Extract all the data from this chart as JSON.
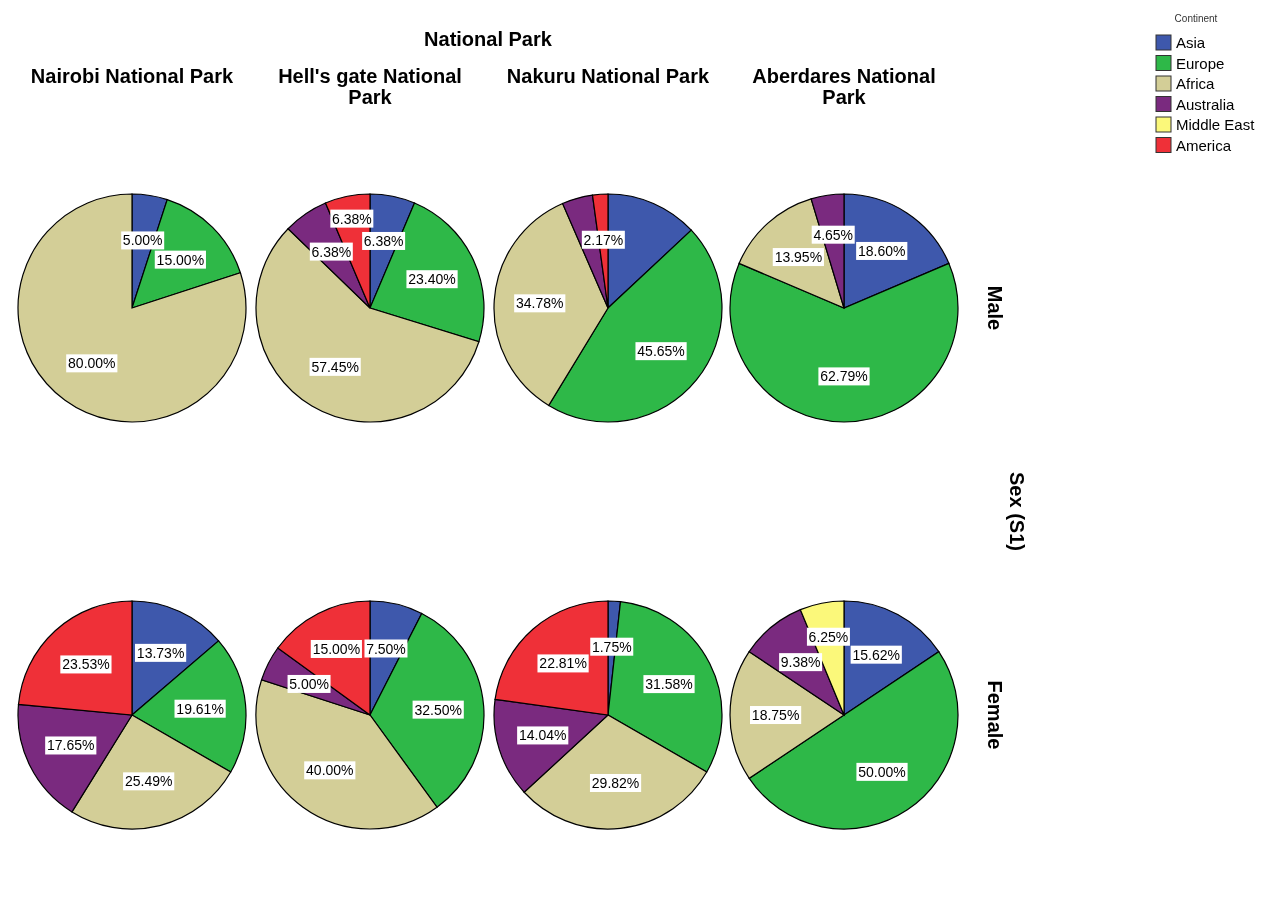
{
  "chart_data": [
    {
      "type": "pie",
      "title": "Nairobi National Park",
      "annotations": [
        "National Park"
      ],
      "legend": "top right",
      "legend_title": "Continent",
      "categories": [
        "Asia",
        "Europe",
        "Africa",
        "Australia",
        "Middle East",
        "America"
      ],
      "colors": [
        "#3e58ac",
        "#2eb848",
        "#d3ce97",
        "#7a2a7f",
        "#fbf87a",
        "#ef3038"
      ],
      "values": [
        5.0,
        15.0,
        80.0,
        0,
        0,
        0
      ],
      "value_labels": [
        "5.00%",
        "15.00%",
        "80.00%",
        null,
        null,
        null
      ]
    },
    {
      "type": "pie",
      "title": "Hell's gate National Park",
      "colors": [
        "#3e58ac",
        "#2eb848",
        "#d3ce97",
        "#7a2a7f",
        "#ef3038"
      ],
      "values": [
        6.38,
        23.4,
        57.45,
        6.38,
        6.38
      ],
      "value_labels": [
        "6.38%",
        "23.40%",
        "57.45%",
        "6.38%",
        "6.38%"
      ]
    },
    {
      "type": "pie",
      "title": "Nakuru National Park",
      "colors": [
        "#3e58ac",
        "#2eb848",
        "#d3ce97",
        "#7a2a7f",
        "#ef3038"
      ],
      "values": [
        13.04,
        45.65,
        34.78,
        4.35,
        2.17
      ],
      "value_labels": [
        null,
        "45.65%",
        "34.78%",
        null,
        "2.17%"
      ]
    },
    {
      "type": "pie",
      "title": "Aberdares National Park",
      "annotations": [
        "Male",
        "Sex (S1)"
      ],
      "colors": [
        "#3e58ac",
        "#2eb848",
        "#d3ce97",
        "#7a2a7f"
      ],
      "values": [
        18.6,
        62.79,
        13.95,
        4.65
      ],
      "value_labels": [
        "18.60%",
        "62.79%",
        "13.95%",
        "4.65%"
      ]
    },
    {
      "type": "pie",
      "colors": [
        "#3e58ac",
        "#2eb848",
        "#d3ce97",
        "#7a2a7f",
        "#ef3038"
      ],
      "values": [
        13.73,
        19.61,
        25.49,
        17.65,
        23.53
      ],
      "value_labels": [
        "13.73%",
        "19.61%",
        "25.49%",
        "17.65%",
        "23.53%"
      ]
    },
    {
      "type": "pie",
      "colors": [
        "#3e58ac",
        "#2eb848",
        "#d3ce97",
        "#7a2a7f",
        "#ef3038"
      ],
      "values": [
        7.5,
        32.5,
        40.0,
        5.0,
        15.0
      ],
      "value_labels": [
        "7.50%",
        "32.50%",
        "40.00%",
        "5.00%",
        "15.00%"
      ]
    },
    {
      "type": "pie",
      "colors": [
        "#3e58ac",
        "#2eb848",
        "#d3ce97",
        "#7a2a7f",
        "#ef3038"
      ],
      "values": [
        1.75,
        31.58,
        29.82,
        14.04,
        22.81
      ],
      "value_labels": [
        "1.75%",
        "31.58%",
        "29.82%",
        "14.04%",
        "22.81%"
      ]
    },
    {
      "type": "pie",
      "annotations": [
        "Female"
      ],
      "colors": [
        "#3e58ac",
        "#2eb848",
        "#d3ce97",
        "#7a2a7f",
        "#fbf87a"
      ],
      "values": [
        15.62,
        50.0,
        18.75,
        9.38,
        6.25
      ],
      "value_labels": [
        "15.62%",
        "50.00%",
        "18.75%",
        "9.38%",
        "6.25%"
      ]
    }
  ]
}
